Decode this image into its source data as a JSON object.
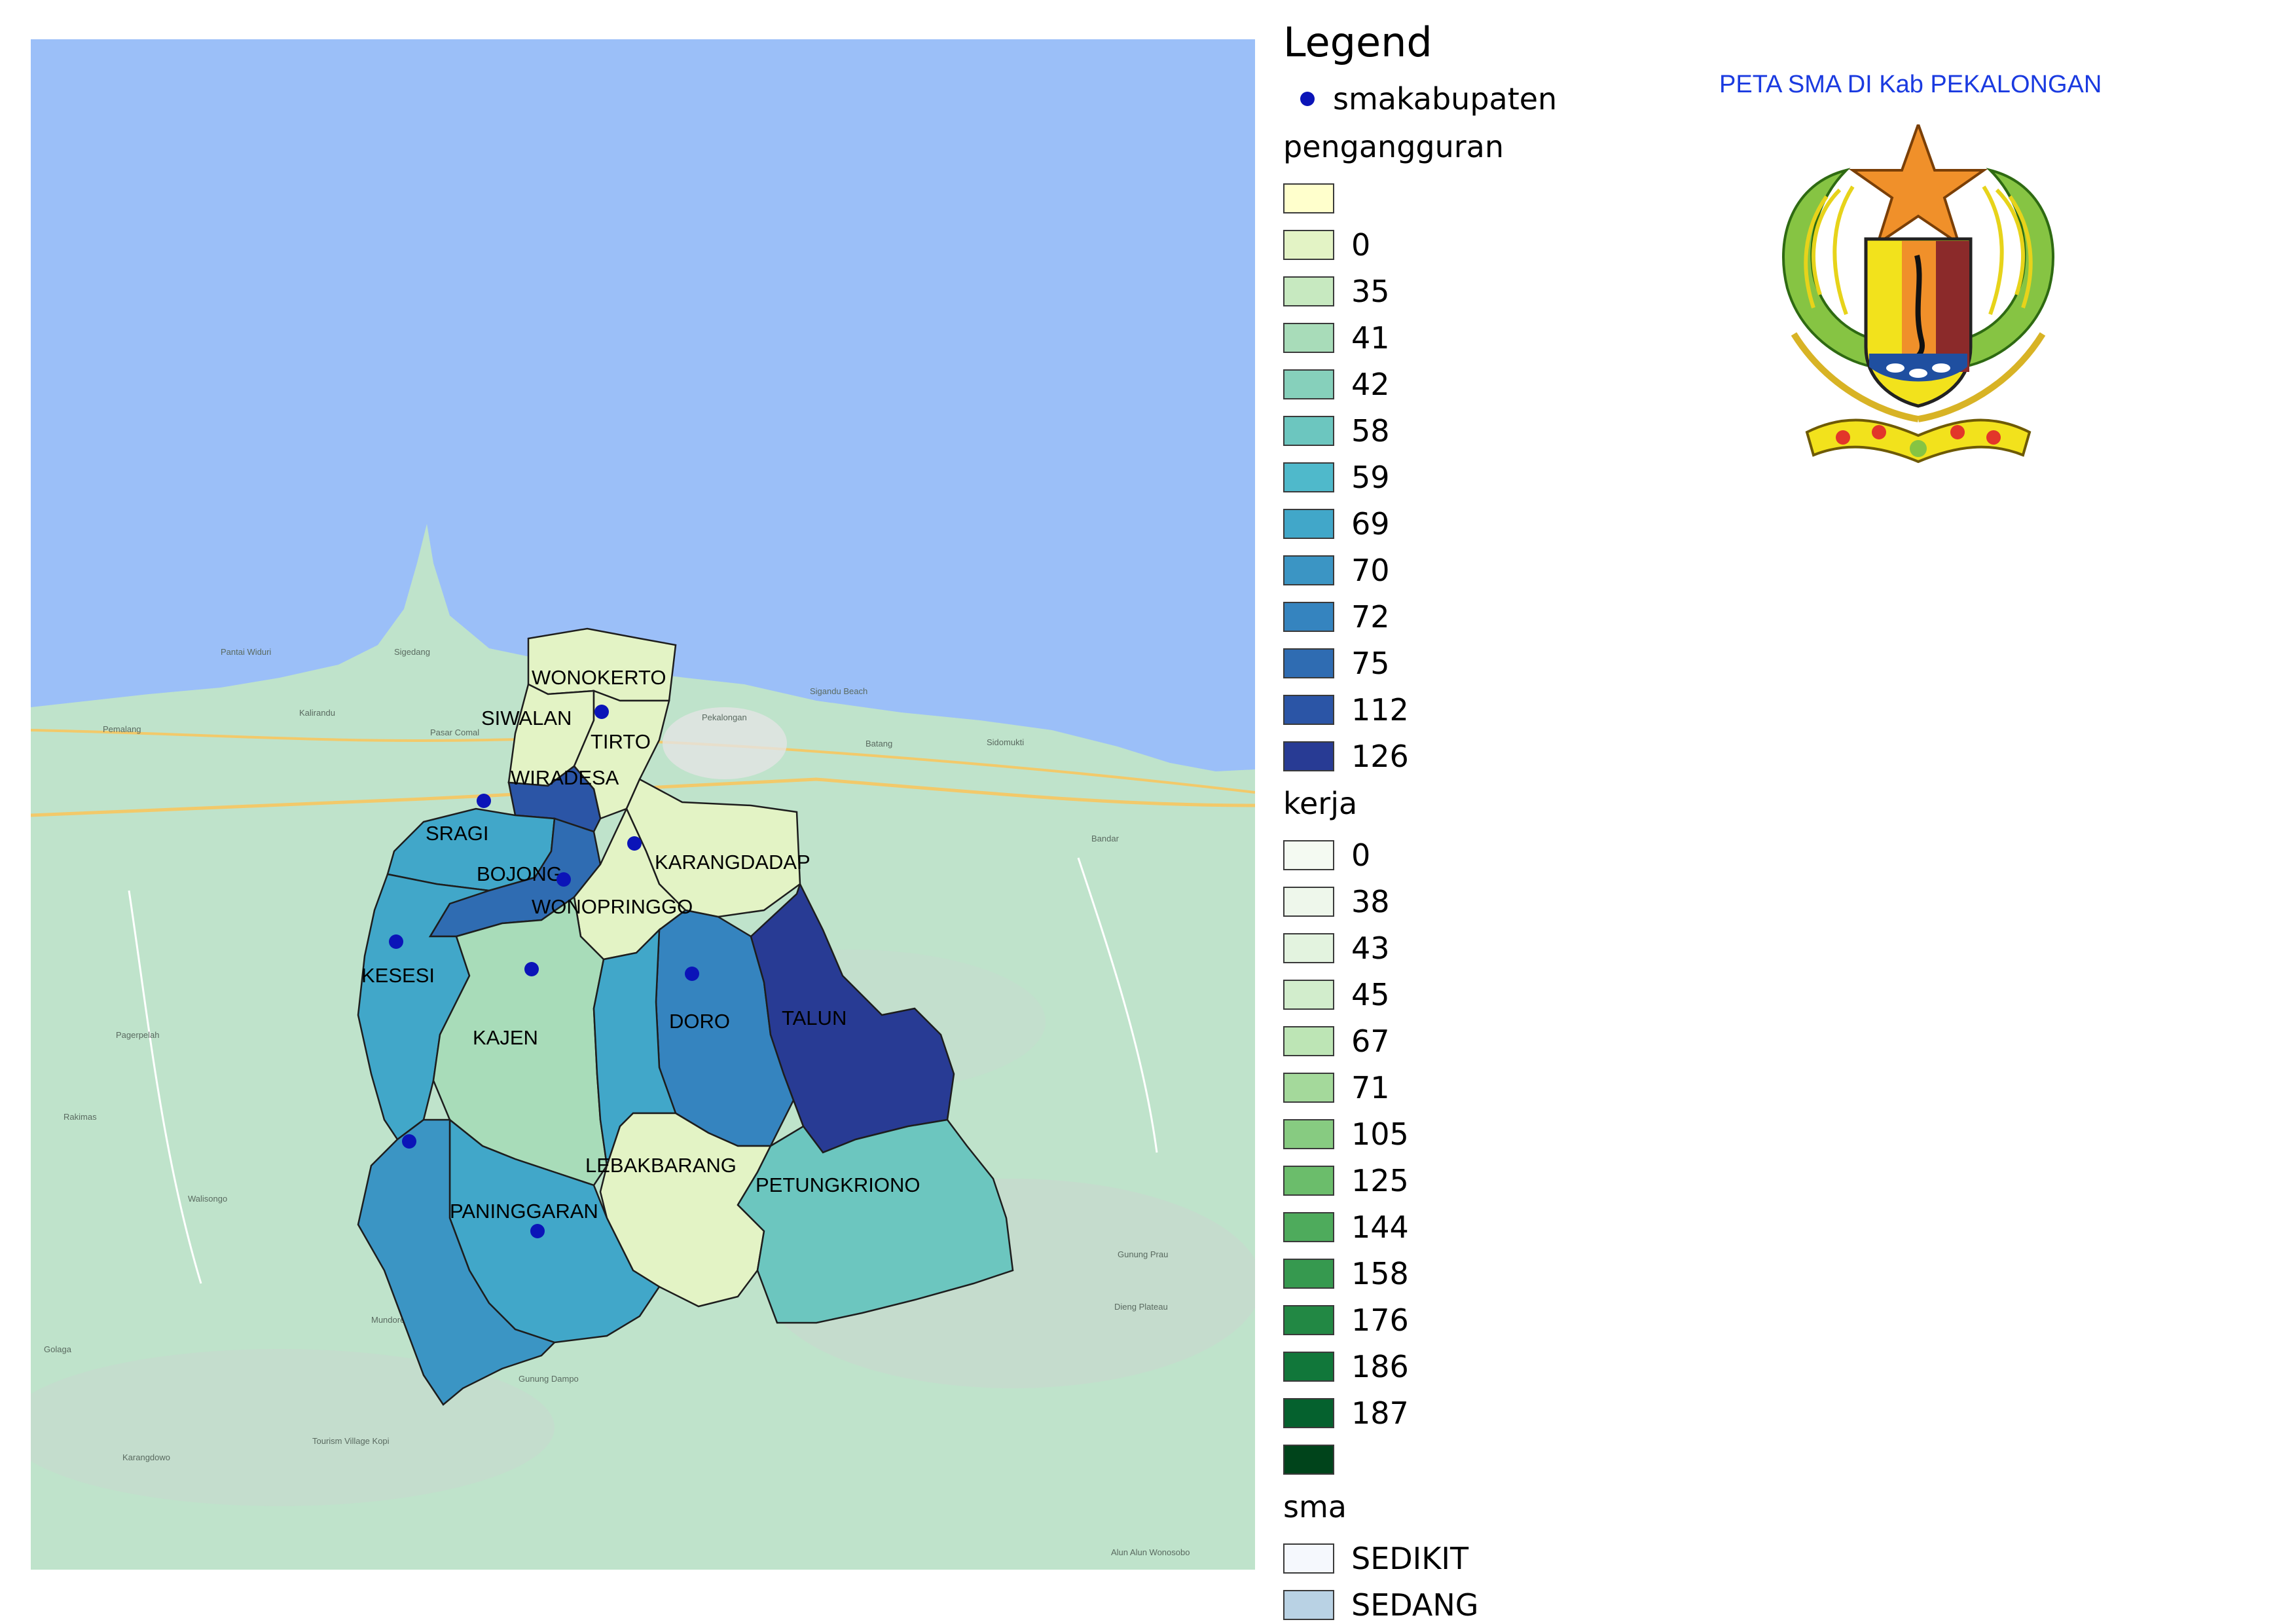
{
  "map_title": "PETA SMA DI Kab PEKALONGAN",
  "legend": {
    "title": "Legend",
    "point_layer": {
      "label": "smakabupaten",
      "color": "#0b14b8"
    },
    "groups": [
      {
        "name": "pengangguran",
        "classes": [
          {
            "label": "",
            "color": "#ffffcc"
          },
          {
            "label": "0",
            "color": "#e3f3c5"
          },
          {
            "label": "35",
            "color": "#c7e9c0"
          },
          {
            "label": "41",
            "color": "#a8dcb9"
          },
          {
            "label": "42",
            "color": "#86d0bb"
          },
          {
            "label": "58",
            "color": "#6cc6bf"
          },
          {
            "label": "59",
            "color": "#4fb9cb"
          },
          {
            "label": "69",
            "color": "#41a7c9"
          },
          {
            "label": "70",
            "color": "#3b95c4"
          },
          {
            "label": "72",
            "color": "#3584bf"
          },
          {
            "label": "75",
            "color": "#2f6cb2"
          },
          {
            "label": "112",
            "color": "#2b55a6"
          },
          {
            "label": "126",
            "color": "#283b94"
          }
        ]
      },
      {
        "name": "kerja",
        "classes": [
          {
            "label": "0",
            "color": "#f4faf2"
          },
          {
            "label": "38",
            "color": "#eef7eb"
          },
          {
            "label": "43",
            "color": "#e3f3df"
          },
          {
            "label": "45",
            "color": "#d2edcc"
          },
          {
            "label": "67",
            "color": "#bde5b5"
          },
          {
            "label": "71",
            "color": "#a4d99b"
          },
          {
            "label": "105",
            "color": "#87cb81"
          },
          {
            "label": "125",
            "color": "#6bbd6b"
          },
          {
            "label": "144",
            "color": "#4eab5c"
          },
          {
            "label": "158",
            "color": "#36994f"
          },
          {
            "label": "176",
            "color": "#228844"
          },
          {
            "label": "186",
            "color": "#11773a"
          },
          {
            "label": "187",
            "color": "#05612e"
          },
          {
            "label": "",
            "color": "#00441b"
          }
        ]
      },
      {
        "name": "sma",
        "classes": [
          {
            "label": "SEDIKIT",
            "color": "#f5f8fd"
          },
          {
            "label": "SEDANG",
            "color": "#b9d2e4"
          }
        ]
      }
    ]
  },
  "districts": [
    {
      "name": "WONOKERTO",
      "color": "#e3f3c5"
    },
    {
      "name": "SIWALAN",
      "color": "#e3f3c5"
    },
    {
      "name": "TIRTO",
      "color": "#e3f3c5"
    },
    {
      "name": "WIRADESA",
      "color": "#2b55a6"
    },
    {
      "name": "SRAGI",
      "color": "#41a7c9"
    },
    {
      "name": "BOJONG",
      "color": "#2f6cb2"
    },
    {
      "name": "KARANGDADAP",
      "color": "#e3f3c5"
    },
    {
      "name": "WONOPRINGGO",
      "color": "#e3f3c5"
    },
    {
      "name": "KESESI",
      "color": "#41a7c9"
    },
    {
      "name": "KAJEN",
      "color": "#a8dcb9"
    },
    {
      "name": "DORO",
      "color": "#3584bf"
    },
    {
      "name": "TALUN",
      "color": "#283b94"
    },
    {
      "name": "LEBAKBARANG",
      "color": "#e3f3c5"
    },
    {
      "name": "PETUNGKRIONO",
      "color": "#6cc6bf"
    },
    {
      "name": "PANINGGARAN",
      "color": "#41a7c9"
    },
    {
      "name": "",
      "color": "#3b95c4"
    }
  ],
  "basemap": {
    "sea_color": "#9bbff8",
    "land_color": "#bfe3cb",
    "places": [
      "Pemalang",
      "Pantai Widuri",
      "Sigedang",
      "Pekalongan",
      "Sigandu Beach",
      "Batang",
      "Kalirandu",
      "Pasar Comal",
      "Sidomukti",
      "Bandar",
      "Pagerpelah",
      "Walisongo",
      "Rakimas",
      "Mundoreng",
      "Golaga",
      "Tourism Village Kopi",
      "Karangdowo",
      "Gunung Dampo",
      "Gunung Prau",
      "Dieng Plateau",
      "Alun Alun Wonosobo"
    ]
  }
}
